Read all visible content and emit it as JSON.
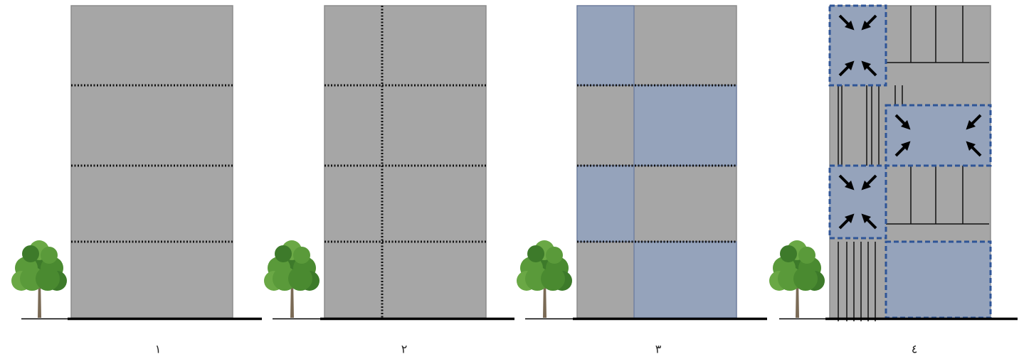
{
  "panels": [
    {
      "label": "١"
    },
    {
      "label": "٢"
    },
    {
      "label": "٣"
    },
    {
      "label": "٤"
    }
  ]
}
